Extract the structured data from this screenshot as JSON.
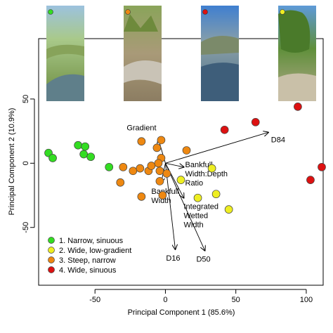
{
  "chart_data": {
    "type": "scatter",
    "title": "",
    "xlabel": "Principal Component 1 (85.6%)",
    "ylabel": "Principal Component 2 (10.9%)",
    "xlim": [
      -90,
      112
    ],
    "ylim": [
      -95,
      97
    ],
    "x_ticks": [
      -50,
      0,
      50,
      100
    ],
    "y_ticks": [
      -50,
      0,
      50
    ],
    "grid": false,
    "legend_position": "bottom-left",
    "series": [
      {
        "name": "1. Narrow, sinuous",
        "color": "#33dd22",
        "points": [
          [
            -83,
            8
          ],
          [
            -80,
            4
          ],
          [
            -62,
            14
          ],
          [
            -58,
            7
          ],
          [
            -57,
            13
          ],
          [
            -53,
            5
          ],
          [
            -40,
            -3
          ]
        ]
      },
      {
        "name": "2. Wide, low-gradient",
        "color": "#eeee22",
        "points": [
          [
            11,
            -13
          ],
          [
            33,
            -4
          ],
          [
            23,
            -27
          ],
          [
            36,
            -24
          ],
          [
            45,
            -36
          ]
        ]
      },
      {
        "name": "3. Steep, narrow",
        "color": "#ee8811",
        "points": [
          [
            -17,
            17
          ],
          [
            -3,
            18
          ],
          [
            -6,
            12
          ],
          [
            -3,
            4
          ],
          [
            15,
            10
          ],
          [
            -30,
            -3
          ],
          [
            -23,
            -6
          ],
          [
            -18,
            -4
          ],
          [
            -12,
            -6
          ],
          [
            -10,
            -2
          ],
          [
            -4,
            -6
          ],
          [
            -4,
            -14
          ],
          [
            1,
            -8
          ],
          [
            -32,
            -15
          ],
          [
            -17,
            -26
          ],
          [
            -2,
            -25
          ],
          [
            -5,
            0
          ]
        ]
      },
      {
        "name": "4. Wide, sinuous",
        "color": "#dd1111",
        "points": [
          [
            42,
            26
          ],
          [
            64,
            32
          ],
          [
            94,
            44
          ],
          [
            111,
            -3
          ],
          [
            103,
            -13
          ]
        ]
      }
    ],
    "loadings": [
      {
        "label": "Gradient",
        "x": -5,
        "y": 19
      },
      {
        "label": "D84",
        "x": 73,
        "y": 24
      },
      {
        "label": "Bankfull Width:Depth Ratio",
        "x": 13,
        "y": -3
      },
      {
        "label": "Bankfull Width",
        "x": -3,
        "y": -15
      },
      {
        "label": "Integrated Wetted Width",
        "x": 13,
        "y": -27
      },
      {
        "label": "D16",
        "x": 7,
        "y": -67
      },
      {
        "label": "D50",
        "x": 28,
        "y": -68
      }
    ],
    "photo_markers": [
      {
        "color": "#33dd22"
      },
      {
        "color": "#ee8811"
      },
      {
        "color": "#dd1111"
      },
      {
        "color": "#eeee22"
      }
    ]
  }
}
